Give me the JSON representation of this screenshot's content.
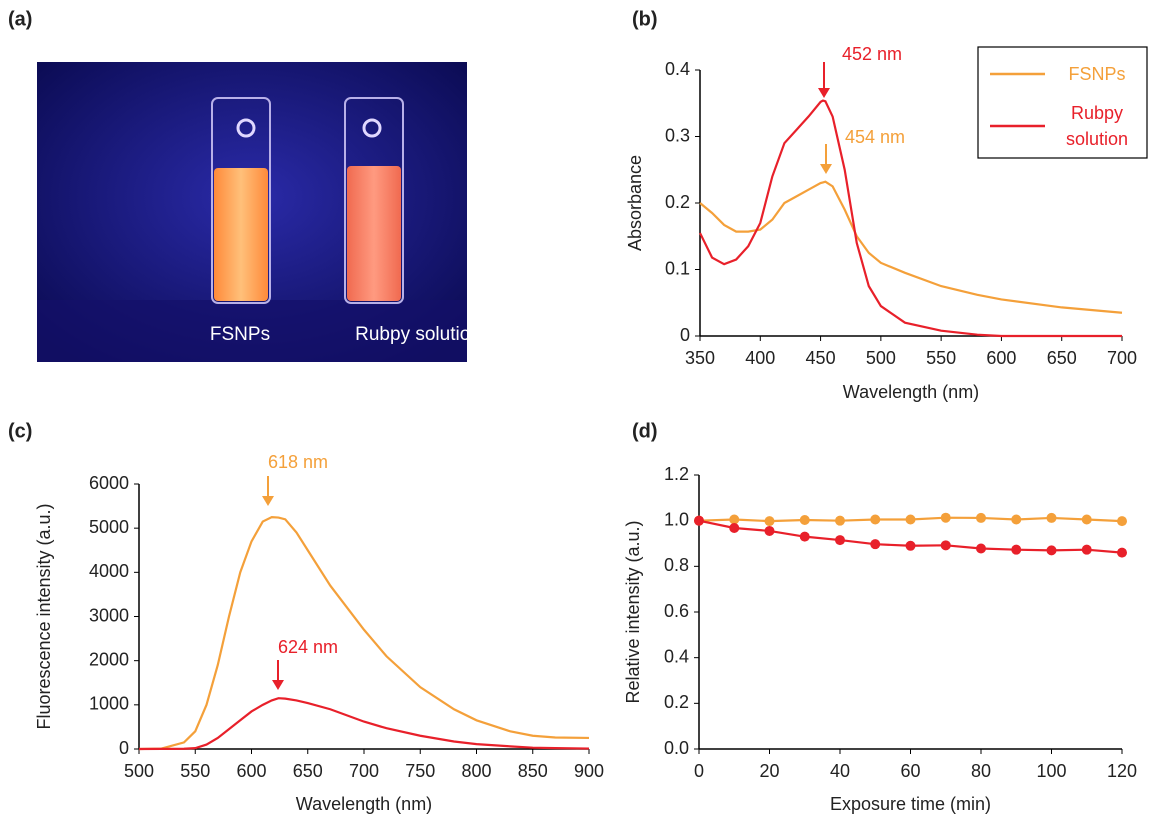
{
  "photo": {
    "label": "(a)",
    "captions": [
      "FSNPs",
      "Rubpy solution"
    ]
  },
  "chart_data": [
    {
      "type": "line",
      "label": "(b)",
      "xlabel": "Wavelength (nm)",
      "ylabel": "Absorbance",
      "x": [
        350,
        360,
        370,
        380,
        390,
        400,
        410,
        420,
        430,
        440,
        450,
        452,
        454,
        460,
        470,
        480,
        490,
        500,
        520,
        550,
        580,
        600,
        650,
        700
      ],
      "series": [
        {
          "name": "FSNPs",
          "color": "#f4a03a",
          "values": [
            0.2,
            0.185,
            0.167,
            0.157,
            0.157,
            0.16,
            0.175,
            0.2,
            0.21,
            0.22,
            0.23,
            0.231,
            0.232,
            0.225,
            0.19,
            0.15,
            0.125,
            0.11,
            0.095,
            0.075,
            0.062,
            0.055,
            0.043,
            0.035
          ]
        },
        {
          "name": "Rubpy solution",
          "color": "#e8202a",
          "values": [
            0.155,
            0.118,
            0.108,
            0.115,
            0.135,
            0.17,
            0.24,
            0.29,
            0.31,
            0.33,
            0.352,
            0.354,
            0.353,
            0.33,
            0.25,
            0.14,
            0.075,
            0.045,
            0.02,
            0.008,
            0.002,
            0,
            0,
            0
          ]
        }
      ],
      "xlim": [
        350,
        700
      ],
      "xticks": [
        350,
        400,
        450,
        500,
        550,
        600,
        650,
        700
      ],
      "ylim": [
        0,
        0.4
      ],
      "yticks": [
        0,
        0.1,
        0.2,
        0.3,
        0.4
      ],
      "legend": "upper right",
      "annotations": [
        {
          "text": "452 nm",
          "color": "#e8202a"
        },
        {
          "text": "454 nm",
          "color": "#f4a03a"
        }
      ]
    },
    {
      "type": "line",
      "label": "(c)",
      "xlabel": "Wavelength (nm)",
      "ylabel": "Fluorescence intensity (a.u.)",
      "x": [
        500,
        520,
        540,
        550,
        560,
        570,
        580,
        590,
        600,
        610,
        618,
        624,
        630,
        640,
        650,
        670,
        700,
        720,
        750,
        780,
        800,
        830,
        850,
        870,
        900
      ],
      "series": [
        {
          "color": "#f4a03a",
          "values": [
            0,
            10,
            150,
            400,
            1000,
            1900,
            3000,
            4000,
            4700,
            5150,
            5250,
            5240,
            5200,
            4900,
            4500,
            3700,
            2700,
            2100,
            1400,
            900,
            650,
            400,
            300,
            260,
            250
          ]
        },
        {
          "color": "#e8202a",
          "values": [
            0,
            2,
            5,
            20,
            100,
            250,
            450,
            650,
            850,
            1000,
            1100,
            1150,
            1140,
            1100,
            1040,
            900,
            620,
            470,
            300,
            170,
            110,
            60,
            30,
            20,
            10
          ]
        }
      ],
      "xlim": [
        500,
        900
      ],
      "xticks": [
        500,
        550,
        600,
        650,
        700,
        750,
        800,
        850,
        900
      ],
      "ylim": [
        0,
        6000
      ],
      "yticks": [
        0,
        1000,
        2000,
        3000,
        4000,
        5000,
        6000
      ],
      "annotations": [
        {
          "text": "618 nm",
          "color": "#f4a03a"
        },
        {
          "text": "624 nm",
          "color": "#e8202a"
        }
      ]
    },
    {
      "type": "line",
      "label": "(d)",
      "xlabel": "Exposure time (min)",
      "ylabel": "Relative intensity (a.u.)",
      "markers": true,
      "x": [
        0,
        10,
        20,
        30,
        40,
        50,
        60,
        70,
        80,
        90,
        100,
        110,
        120
      ],
      "series": [
        {
          "color": "#f4a03a",
          "values": [
            1.0,
            1.005,
            0.998,
            1.003,
            1.0,
            1.005,
            1.005,
            1.013,
            1.012,
            1.005,
            1.012,
            1.005,
            0.998
          ]
        },
        {
          "color": "#e8202a",
          "values": [
            1.0,
            0.968,
            0.955,
            0.93,
            0.915,
            0.897,
            0.89,
            0.892,
            0.878,
            0.873,
            0.87,
            0.873,
            0.86
          ]
        }
      ],
      "xlim": [
        0,
        120
      ],
      "xticks": [
        0,
        20,
        40,
        60,
        80,
        100,
        120
      ],
      "ylim": [
        0,
        1.2
      ],
      "yticks": [
        {
          "value": 0,
          "label": "0.0"
        },
        0.2,
        0.4,
        0.6,
        0.8,
        {
          "value": 1,
          "label": "1.0"
        },
        1.2
      ]
    }
  ]
}
